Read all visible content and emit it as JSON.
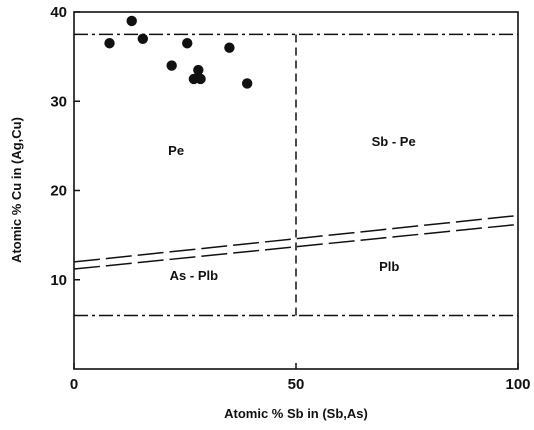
{
  "chart_data": {
    "type": "scatter",
    "title": "",
    "xlabel": "Atomic % Sb in (Sb,As)",
    "ylabel": "Atomic % Cu in (Ag,Cu)",
    "xlim": [
      0,
      100
    ],
    "ylim": [
      0,
      40
    ],
    "x_ticks": [
      "0",
      "50",
      "100"
    ],
    "y_ticks": [
      "10",
      "20",
      "30",
      "40"
    ],
    "x_tick_values": [
      0,
      50,
      100
    ],
    "y_tick_values": [
      10,
      20,
      30,
      40
    ],
    "grid": false,
    "points": [
      {
        "x": 8,
        "y": 36.5
      },
      {
        "x": 13,
        "y": 39
      },
      {
        "x": 15.5,
        "y": 37
      },
      {
        "x": 22,
        "y": 34
      },
      {
        "x": 25.5,
        "y": 36.5
      },
      {
        "x": 27,
        "y": 32.5
      },
      {
        "x": 28,
        "y": 33.5
      },
      {
        "x": 28.5,
        "y": 32.5
      },
      {
        "x": 35,
        "y": 36
      },
      {
        "x": 39,
        "y": 32
      }
    ],
    "boundaries": [
      {
        "x": [
          0,
          100
        ],
        "y": [
          37.5,
          37.5
        ],
        "style": "dash-dot"
      },
      {
        "x": [
          0,
          100
        ],
        "y": [
          6,
          6
        ],
        "style": "dash-dot"
      },
      {
        "x": [
          50,
          50
        ],
        "y": [
          6,
          37.5
        ],
        "style": "dashed"
      },
      {
        "x": [
          0,
          100
        ],
        "y": [
          12,
          17.2
        ],
        "style": "long-dash"
      },
      {
        "x": [
          0,
          100
        ],
        "y": [
          11.2,
          16.2
        ],
        "style": "long-dash"
      }
    ],
    "region_labels": [
      {
        "text": "Pe",
        "x": 23,
        "y": 24
      },
      {
        "text": "Sb - Pe",
        "x": 72,
        "y": 25
      },
      {
        "text": "As - Plb",
        "x": 27,
        "y": 10
      },
      {
        "text": "Plb",
        "x": 71,
        "y": 11
      }
    ],
    "colors": {
      "ink": "#111111",
      "background": "#ffffff"
    }
  }
}
